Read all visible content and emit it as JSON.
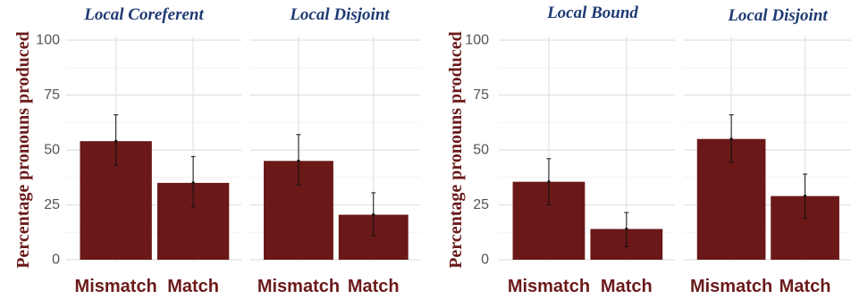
{
  "chart_data": [
    {
      "type": "bar",
      "ylabel": "Percentage pronouns produced",
      "ylim": [
        0,
        100
      ],
      "yticks": [
        "0",
        "25",
        "50",
        "75",
        "100"
      ],
      "bar_color": "#6b1818",
      "grid": true,
      "panels": [
        {
          "title": "Local Coreferent",
          "categories": [
            "Mismatch",
            "Match"
          ],
          "values": [
            54,
            35
          ],
          "error_low": [
            43,
            24
          ],
          "error_high": [
            66,
            47
          ]
        },
        {
          "title": "Local Disjoint",
          "categories": [
            "Mismatch",
            "Match"
          ],
          "values": [
            45,
            20.5
          ],
          "error_low": [
            34,
            11
          ],
          "error_high": [
            57,
            30.5
          ]
        }
      ]
    },
    {
      "type": "bar",
      "ylabel": "Percentage pronouns produced",
      "ylim": [
        0,
        100
      ],
      "yticks": [
        "0",
        "25",
        "50",
        "75",
        "100"
      ],
      "bar_color": "#6b1818",
      "grid": true,
      "panels": [
        {
          "title": "Local Bound",
          "categories": [
            "Mismatch",
            "Match"
          ],
          "values": [
            35.5,
            14
          ],
          "error_low": [
            25,
            6
          ],
          "error_high": [
            46,
            21.5
          ]
        },
        {
          "title": "Local Disjoint",
          "categories": [
            "Mismatch",
            "Match"
          ],
          "values": [
            55,
            29
          ],
          "error_low": [
            44.5,
            19
          ],
          "error_high": [
            66,
            39
          ]
        }
      ]
    }
  ]
}
